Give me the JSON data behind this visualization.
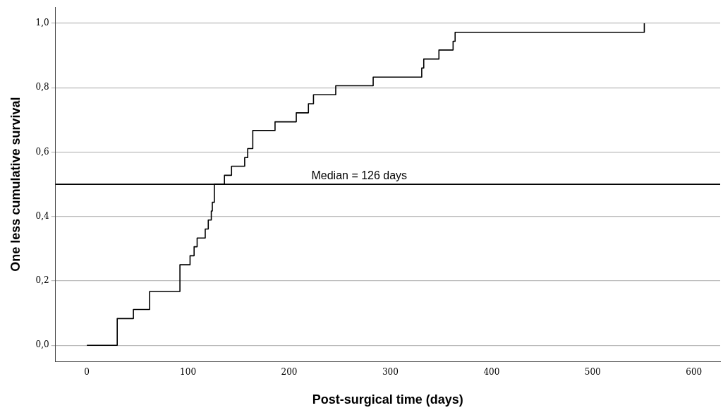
{
  "chart_data": {
    "type": "step",
    "xlabel": "Post-surgical time (days)",
    "ylabel": "One less cumulative survival",
    "x": [
      0,
      30,
      46,
      62,
      92,
      102,
      106,
      109,
      117,
      120,
      123,
      124,
      126,
      136,
      143,
      156,
      159,
      164,
      186,
      207,
      219,
      224,
      246,
      283,
      331,
      333,
      348,
      362,
      364,
      551
    ],
    "series": [
      {
        "color": "#000000",
        "values": [
          0,
          0.083,
          0.111,
          0.167,
          0.25,
          0.278,
          0.306,
          0.333,
          0.361,
          0.389,
          0.417,
          0.444,
          0.5,
          0.528,
          0.556,
          0.583,
          0.611,
          0.667,
          0.694,
          0.722,
          0.75,
          0.778,
          0.806,
          0.833,
          0.861,
          0.889,
          0.917,
          0.944,
          0.972,
          1.0
        ]
      }
    ],
    "xlim": [
      -31,
      626
    ],
    "xticks": [
      0,
      100,
      200,
      300,
      400,
      500,
      600
    ],
    "ylim": [
      -0.05,
      1.05
    ],
    "yticks": [
      {
        "value": 0,
        "label": "0,0"
      },
      {
        "value": 0.2,
        "label": "0,2"
      },
      {
        "value": 0.4,
        "label": "0,4"
      },
      {
        "value": 0.6,
        "label": "0,6"
      },
      {
        "value": 0.8,
        "label": "0,8"
      },
      {
        "value": 1,
        "label": "1,0"
      }
    ],
    "ref_lines": [
      {
        "axis": "y",
        "value": 0.5,
        "color": "#000000"
      }
    ],
    "annotations": [
      "Median = 126 days"
    ],
    "grid": "y",
    "legend": false,
    "marker": "none",
    "line_style": "solid"
  }
}
